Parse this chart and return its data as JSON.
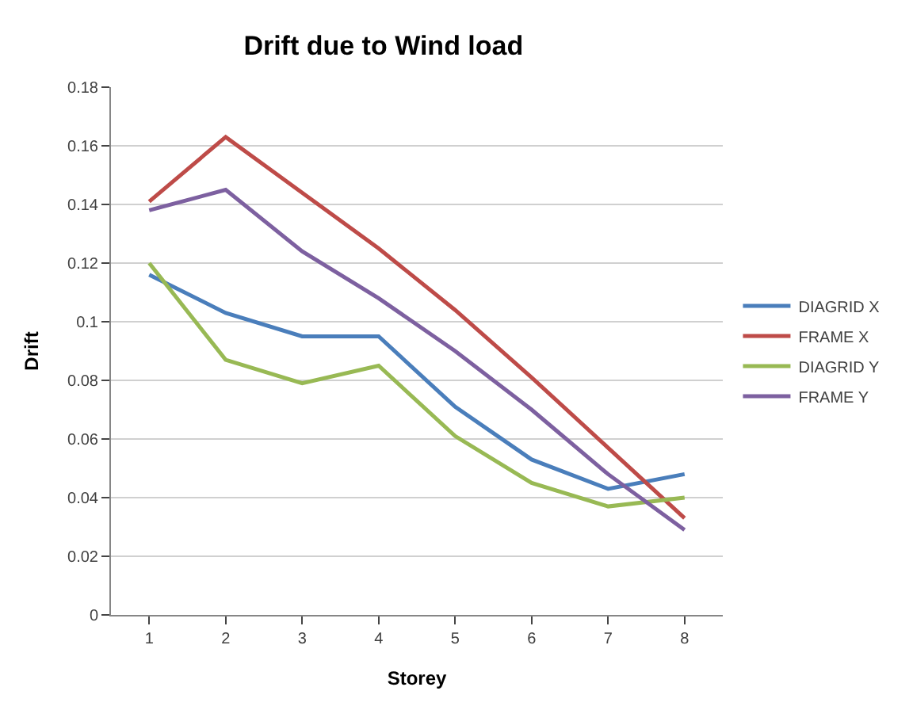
{
  "chart_data": {
    "type": "line",
    "title": "Drift due to Wind load",
    "xlabel": "Storey",
    "ylabel": "Drift",
    "categories": [
      "1",
      "2",
      "3",
      "4",
      "5",
      "6",
      "7",
      "8"
    ],
    "series": [
      {
        "name": "DIAGRID X",
        "color": "#4a7ebb",
        "values": [
          0.116,
          0.103,
          0.095,
          0.095,
          0.071,
          0.053,
          0.043,
          0.048
        ]
      },
      {
        "name": "FRAME X",
        "color": "#be4b48",
        "values": [
          0.141,
          0.163,
          0.144,
          0.125,
          0.104,
          0.081,
          0.057,
          0.033
        ]
      },
      {
        "name": "DIAGRID Y",
        "color": "#98b954",
        "values": [
          0.12,
          0.087,
          0.079,
          0.085,
          0.061,
          0.045,
          0.037,
          0.04
        ]
      },
      {
        "name": "FRAME Y",
        "color": "#7d60a0",
        "values": [
          0.138,
          0.145,
          0.124,
          0.108,
          0.09,
          0.07,
          0.048,
          0.029
        ]
      }
    ],
    "ylim": [
      0,
      0.18
    ],
    "yticks": [
      0,
      0.02,
      0.04,
      0.06,
      0.08,
      0.1,
      0.12,
      0.14,
      0.16,
      0.18
    ],
    "grid": "y",
    "legend": "right",
    "marker": "none",
    "line_style": "solid"
  }
}
